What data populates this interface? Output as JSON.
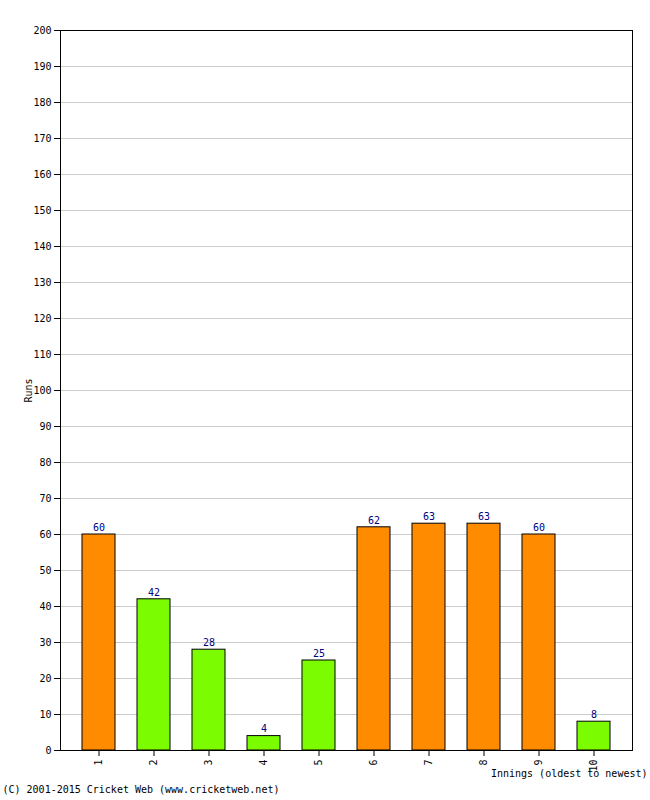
{
  "chart_data": {
    "type": "bar",
    "x_label": "Innings (oldest to newest)",
    "y_label": "Runs",
    "caption": "(C) 2001-2015 Cricket Web (www.cricketweb.net)",
    "categories": [
      "1",
      "2",
      "3",
      "4",
      "5",
      "6",
      "7",
      "8",
      "9",
      "10"
    ],
    "values": [
      60,
      42,
      28,
      4,
      25,
      62,
      63,
      63,
      60,
      8
    ],
    "colors": [
      "#ff8c00",
      "#7cfc00",
      "#7cfc00",
      "#7cfc00",
      "#7cfc00",
      "#ff8c00",
      "#ff8c00",
      "#ff8c00",
      "#ff8c00",
      "#7cfc00"
    ],
    "ylim": [
      0,
      200
    ],
    "yticks": [
      0,
      10,
      20,
      30,
      40,
      50,
      60,
      70,
      80,
      90,
      100,
      110,
      120,
      130,
      140,
      150,
      160,
      170,
      180,
      190,
      200
    ],
    "grid": true,
    "data_labels": true
  }
}
